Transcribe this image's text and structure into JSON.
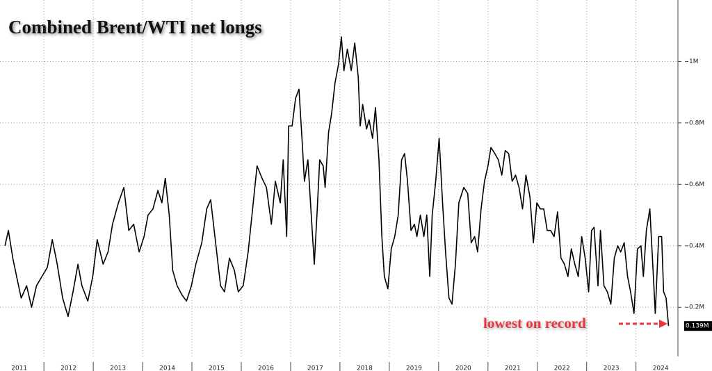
{
  "chart_data": {
    "type": "line",
    "title": "Combined Brent/WTI net longs",
    "annotation": "lowest on record",
    "last_value_label": "0.139M",
    "series": [
      {
        "name": "Combined Brent/WTI net longs",
        "color": "#000000",
        "x": [
          2011.21,
          2011.28,
          2011.37,
          2011.46,
          2011.54,
          2011.65,
          2011.75,
          2011.85,
          2011.96,
          2012.07,
          2012.17,
          2012.27,
          2012.38,
          2012.49,
          2012.59,
          2012.69,
          2012.77,
          2012.89,
          2012.99,
          2013.08,
          2013.2,
          2013.3,
          2013.39,
          2013.51,
          2013.62,
          2013.72,
          2013.82,
          2013.93,
          2014.03,
          2014.11,
          2014.21,
          2014.31,
          2014.39,
          2014.46,
          2014.54,
          2014.61,
          2014.7,
          2014.8,
          2014.89,
          2014.99,
          2015.08,
          2015.2,
          2015.3,
          2015.38,
          2015.48,
          2015.58,
          2015.66,
          2015.76,
          2015.86,
          2015.94,
          2016.04,
          2016.14,
          2016.23,
          2016.32,
          2016.42,
          2016.51,
          2016.61,
          2016.69,
          2016.79,
          2016.85,
          2016.92,
          2016.96,
          2017.03,
          2017.1,
          2017.17,
          2017.23,
          2017.28,
          2017.35,
          2017.41,
          2017.48,
          2017.54,
          2017.59,
          2017.66,
          2017.7,
          2017.77,
          2017.83,
          2017.9,
          2017.97,
          2018.03,
          2018.08,
          2018.15,
          2018.23,
          2018.3,
          2018.37,
          2018.41,
          2018.46,
          2018.54,
          2018.59,
          2018.66,
          2018.72,
          2018.79,
          2018.85,
          2018.9,
          2018.97,
          2019.04,
          2019.11,
          2019.18,
          2019.25,
          2019.31,
          2019.37,
          2019.44,
          2019.51,
          2019.56,
          2019.63,
          2019.7,
          2019.76,
          2019.82,
          2019.87,
          2019.94,
          2020.01,
          2020.08,
          2020.14,
          2020.21,
          2020.27,
          2020.34,
          2020.41,
          2020.51,
          2020.59,
          2020.66,
          2020.73,
          2020.79,
          2020.86,
          2020.93,
          2021.0,
          2021.06,
          2021.14,
          2021.21,
          2021.28,
          2021.35,
          2021.42,
          2021.49,
          2021.56,
          2021.63,
          2021.7,
          2021.77,
          2021.85,
          2021.92,
          2021.99,
          2022.06,
          2022.13,
          2022.2,
          2022.27,
          2022.34,
          2022.41,
          2022.48,
          2022.55,
          2022.62,
          2022.69,
          2022.76,
          2022.83,
          2022.9,
          2022.97,
          2023.04,
          2023.1,
          2023.15,
          2023.23,
          2023.28,
          2023.35,
          2023.42,
          2023.49,
          2023.56,
          2023.63,
          2023.69,
          2023.76,
          2023.83,
          2023.89,
          2023.96,
          2024.03,
          2024.1,
          2024.15,
          2024.21,
          2024.28,
          2024.34,
          2024.39,
          2024.46,
          2024.52,
          2024.56,
          2024.61,
          2024.66
        ],
        "values": [
          0.4,
          0.45,
          0.36,
          0.29,
          0.23,
          0.27,
          0.2,
          0.27,
          0.3,
          0.33,
          0.42,
          0.34,
          0.23,
          0.17,
          0.25,
          0.34,
          0.27,
          0.22,
          0.3,
          0.42,
          0.34,
          0.38,
          0.47,
          0.54,
          0.59,
          0.45,
          0.47,
          0.38,
          0.43,
          0.5,
          0.52,
          0.58,
          0.54,
          0.62,
          0.5,
          0.32,
          0.27,
          0.24,
          0.22,
          0.27,
          0.34,
          0.41,
          0.52,
          0.55,
          0.41,
          0.27,
          0.25,
          0.36,
          0.32,
          0.25,
          0.27,
          0.38,
          0.52,
          0.66,
          0.62,
          0.59,
          0.47,
          0.61,
          0.54,
          0.68,
          0.43,
          0.79,
          0.79,
          0.88,
          0.91,
          0.75,
          0.61,
          0.68,
          0.52,
          0.34,
          0.52,
          0.68,
          0.66,
          0.59,
          0.77,
          0.83,
          0.93,
          0.99,
          1.08,
          0.97,
          1.04,
          0.97,
          1.06,
          0.95,
          0.79,
          0.86,
          0.78,
          0.81,
          0.75,
          0.85,
          0.68,
          0.43,
          0.3,
          0.26,
          0.39,
          0.43,
          0.5,
          0.68,
          0.7,
          0.61,
          0.45,
          0.47,
          0.43,
          0.5,
          0.43,
          0.5,
          0.3,
          0.5,
          0.61,
          0.75,
          0.54,
          0.38,
          0.23,
          0.21,
          0.34,
          0.54,
          0.59,
          0.57,
          0.41,
          0.43,
          0.38,
          0.52,
          0.61,
          0.66,
          0.72,
          0.7,
          0.68,
          0.63,
          0.71,
          0.7,
          0.61,
          0.63,
          0.59,
          0.52,
          0.63,
          0.56,
          0.41,
          0.54,
          0.52,
          0.52,
          0.45,
          0.45,
          0.43,
          0.51,
          0.36,
          0.34,
          0.3,
          0.39,
          0.34,
          0.3,
          0.43,
          0.36,
          0.25,
          0.45,
          0.46,
          0.27,
          0.45,
          0.27,
          0.25,
          0.21,
          0.36,
          0.4,
          0.38,
          0.41,
          0.3,
          0.25,
          0.18,
          0.39,
          0.4,
          0.3,
          0.45,
          0.52,
          0.34,
          0.18,
          0.43,
          0.43,
          0.25,
          0.23,
          0.139
        ]
      }
    ],
    "xlim": [
      2011.11,
      2024.85
    ],
    "xticks": [
      {
        "value": 2011.5,
        "label": "2011"
      },
      {
        "value": 2012.5,
        "label": "2012"
      },
      {
        "value": 2013.5,
        "label": "2013"
      },
      {
        "value": 2014.5,
        "label": "2014"
      },
      {
        "value": 2015.5,
        "label": "2015"
      },
      {
        "value": 2016.5,
        "label": "2016"
      },
      {
        "value": 2017.5,
        "label": "2017"
      },
      {
        "value": 2018.5,
        "label": "2018"
      },
      {
        "value": 2019.5,
        "label": "2019"
      },
      {
        "value": 2020.5,
        "label": "2020"
      },
      {
        "value": 2021.5,
        "label": "2021"
      },
      {
        "value": 2022.5,
        "label": "2022"
      },
      {
        "value": 2023.5,
        "label": "2023"
      },
      {
        "value": 2024.5,
        "label": "2024"
      }
    ],
    "ylim": [
      0.04,
      1.2
    ],
    "yticks": [
      {
        "value": 0.2,
        "label": "0.2M"
      },
      {
        "value": 0.4,
        "label": "0.4M"
      },
      {
        "value": 0.6,
        "label": "0.6M"
      },
      {
        "value": 0.8,
        "label": "0.8M"
      },
      {
        "value": 1,
        "label": "1M"
      }
    ],
    "grid": true
  }
}
